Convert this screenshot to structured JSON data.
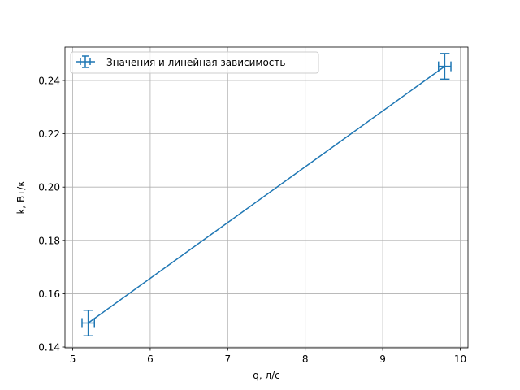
{
  "chart_data": {
    "type": "line",
    "title": "",
    "xlabel": "q, л/с",
    "ylabel": "k, Вт/к",
    "xlim": [
      4.9,
      10.1
    ],
    "ylim": [
      0.1397,
      0.2525
    ],
    "xticks": [
      5,
      6,
      7,
      8,
      9,
      10
    ],
    "xtick_labels": [
      "5",
      "6",
      "7",
      "8",
      "9",
      "10"
    ],
    "yticks": [
      0.14,
      0.16,
      0.18,
      0.2,
      0.22,
      0.24
    ],
    "ytick_labels": [
      "0.14",
      "0.16",
      "0.18",
      "0.20",
      "0.22",
      "0.24"
    ],
    "grid": true,
    "legend_position": "top-left",
    "series": [
      {
        "name": "Значения и линейная зависимость",
        "color": "#1f77b4",
        "marker": "errorbar",
        "x": [
          5.2,
          9.8
        ],
        "y": [
          0.149,
          0.2453
        ],
        "xerr": [
          0.08,
          0.08
        ],
        "yerr": [
          0.0048,
          0.0048
        ]
      }
    ]
  }
}
